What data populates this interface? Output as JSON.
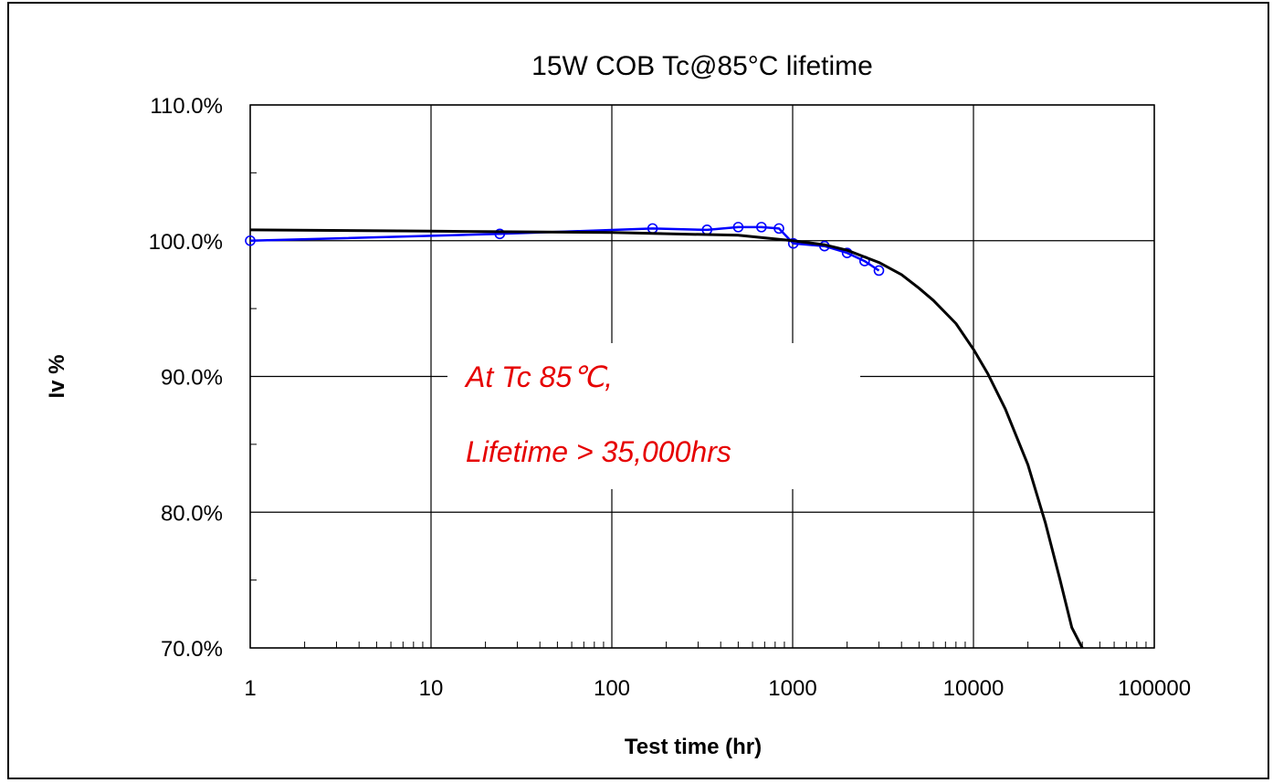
{
  "chart_data": {
    "type": "line",
    "title": "15W COB Tc@85°C  lifetime",
    "xlabel": "Test time (hr)",
    "ylabel": "Iv %",
    "x_scale": "log",
    "xlim": [
      1,
      100000
    ],
    "ylim": [
      0.7,
      1.1
    ],
    "x_tick_labels": [
      "1",
      "10",
      "100",
      "1000",
      "10000",
      "100000"
    ],
    "y_tick_labels": [
      "70.0%",
      "80.0%",
      "90.0%",
      "100.0%",
      "110.0%"
    ],
    "y_tick_values": [
      0.7,
      0.8,
      0.9,
      1.0,
      1.1
    ],
    "grid": true,
    "legend": "none",
    "annotations": [
      "At Tc 85℃,",
      "Lifetime > 35,000hrs"
    ],
    "series": [
      {
        "role": "measured",
        "color": "#0000ff",
        "marker": "circle",
        "x": [
          1,
          24,
          168,
          336,
          500,
          672,
          840,
          1008,
          1500,
          2000,
          2500,
          3000
        ],
        "y": [
          1.0,
          1.005,
          1.009,
          1.008,
          1.01,
          1.01,
          1.009,
          0.998,
          0.996,
          0.991,
          0.985,
          0.978
        ]
      },
      {
        "role": "fit",
        "color": "#000000",
        "marker": "none",
        "x": [
          1,
          10,
          100,
          500,
          1000,
          1500,
          2000,
          3000,
          4000,
          5000,
          6000,
          8000,
          10000,
          12000,
          15000,
          20000,
          25000,
          30000,
          35000,
          40000
        ],
        "y": [
          1.008,
          1.007,
          1.006,
          1.004,
          1.0,
          0.997,
          0.993,
          0.984,
          0.975,
          0.965,
          0.956,
          0.939,
          0.92,
          0.902,
          0.876,
          0.835,
          0.792,
          0.751,
          0.715,
          0.7
        ]
      }
    ]
  }
}
